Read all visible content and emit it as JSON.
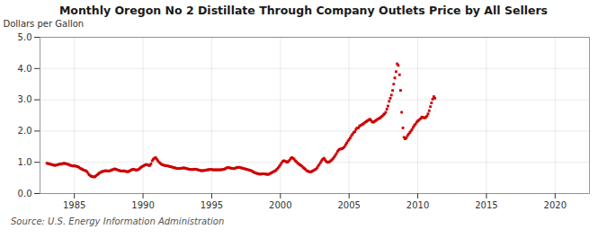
{
  "chart_data": {
    "type": "scatter",
    "title": "Monthly Oregon No 2 Distillate Through Company Outlets Price by All Sellers",
    "ylabel": "Dollars per Gallon",
    "source": "Source: U.S. Energy Information Administration",
    "color": "#cc0000",
    "marker": "square",
    "grid": true,
    "xlim": [
      1982.5,
      2022.5
    ],
    "ylim": [
      0.0,
      5.0
    ],
    "xticks": [
      1985,
      1990,
      1995,
      2000,
      2005,
      2010,
      2015,
      2020
    ],
    "yticks": [
      {
        "value": 0,
        "label": "0.0"
      },
      {
        "value": 1,
        "label": "1.0"
      },
      {
        "value": 2,
        "label": "2.0"
      },
      {
        "value": 3,
        "label": "3.0"
      },
      {
        "value": 4,
        "label": "4.0"
      },
      {
        "value": 5,
        "label": "5.0"
      }
    ],
    "x": [
      1983.0,
      1983.08,
      1983.17,
      1983.25,
      1983.33,
      1983.42,
      1983.5,
      1983.58,
      1983.67,
      1983.75,
      1983.83,
      1983.92,
      1984.0,
      1984.08,
      1984.17,
      1984.25,
      1984.33,
      1984.42,
      1984.5,
      1984.58,
      1984.67,
      1984.75,
      1984.83,
      1984.92,
      1985.0,
      1985.08,
      1985.17,
      1985.25,
      1985.33,
      1985.42,
      1985.5,
      1985.58,
      1985.67,
      1985.75,
      1985.83,
      1985.92,
      1986.0,
      1986.08,
      1986.17,
      1986.25,
      1986.33,
      1986.42,
      1986.5,
      1986.58,
      1986.67,
      1986.75,
      1986.83,
      1986.92,
      1987.0,
      1987.08,
      1987.17,
      1987.25,
      1987.33,
      1987.42,
      1987.5,
      1987.58,
      1987.67,
      1987.75,
      1987.83,
      1987.92,
      1988.0,
      1988.08,
      1988.17,
      1988.25,
      1988.33,
      1988.42,
      1988.5,
      1988.58,
      1988.67,
      1988.75,
      1988.83,
      1988.92,
      1989.0,
      1989.08,
      1989.17,
      1989.25,
      1989.33,
      1989.42,
      1989.5,
      1989.58,
      1989.67,
      1989.75,
      1989.83,
      1989.92,
      1990.0,
      1990.08,
      1990.17,
      1990.25,
      1990.33,
      1990.42,
      1990.5,
      1990.58,
      1990.67,
      1990.75,
      1990.83,
      1990.92,
      1991.0,
      1991.08,
      1991.17,
      1991.25,
      1991.33,
      1991.42,
      1991.5,
      1991.58,
      1991.67,
      1991.75,
      1991.83,
      1991.92,
      1992.0,
      1992.08,
      1992.17,
      1992.25,
      1992.33,
      1992.42,
      1992.5,
      1992.58,
      1992.67,
      1992.75,
      1992.83,
      1992.92,
      1993.0,
      1993.08,
      1993.17,
      1993.25,
      1993.33,
      1993.42,
      1993.5,
      1993.58,
      1993.67,
      1993.75,
      1993.83,
      1993.92,
      1994.0,
      1994.08,
      1994.17,
      1994.25,
      1994.33,
      1994.42,
      1994.5,
      1994.58,
      1994.67,
      1994.75,
      1994.83,
      1994.92,
      1995.0,
      1995.08,
      1995.17,
      1995.25,
      1995.33,
      1995.42,
      1995.5,
      1995.58,
      1995.67,
      1995.75,
      1995.83,
      1995.92,
      1996.0,
      1996.08,
      1996.17,
      1996.25,
      1996.33,
      1996.42,
      1996.5,
      1996.58,
      1996.67,
      1996.75,
      1996.83,
      1996.92,
      1997.0,
      1997.08,
      1997.17,
      1997.25,
      1997.33,
      1997.42,
      1997.5,
      1997.58,
      1997.67,
      1997.75,
      1997.83,
      1997.92,
      1998.0,
      1998.08,
      1998.17,
      1998.25,
      1998.33,
      1998.42,
      1998.5,
      1998.58,
      1998.67,
      1998.75,
      1998.83,
      1998.92,
      1999.0,
      1999.08,
      1999.17,
      1999.25,
      1999.33,
      1999.42,
      1999.5,
      1999.58,
      1999.67,
      1999.75,
      1999.83,
      1999.92,
      2000.0,
      2000.08,
      2000.17,
      2000.25,
      2000.33,
      2000.42,
      2000.5,
      2000.58,
      2000.67,
      2000.75,
      2000.83,
      2000.92,
      2001.0,
      2001.08,
      2001.17,
      2001.25,
      2001.33,
      2001.42,
      2001.5,
      2001.58,
      2001.67,
      2001.75,
      2001.83,
      2001.92,
      2002.0,
      2002.08,
      2002.17,
      2002.25,
      2002.33,
      2002.42,
      2002.5,
      2002.58,
      2002.67,
      2002.75,
      2002.83,
      2002.92,
      2003.0,
      2003.08,
      2003.17,
      2003.25,
      2003.33,
      2003.42,
      2003.5,
      2003.58,
      2003.67,
      2003.75,
      2003.83,
      2003.92,
      2004.0,
      2004.08,
      2004.17,
      2004.25,
      2004.33,
      2004.42,
      2004.5,
      2004.58,
      2004.67,
      2004.75,
      2004.83,
      2004.92,
      2005.0,
      2005.08,
      2005.17,
      2005.25,
      2005.33,
      2005.42,
      2005.5,
      2005.58,
      2005.67,
      2005.75,
      2005.83,
      2005.92,
      2006.0,
      2006.08,
      2006.17,
      2006.25,
      2006.33,
      2006.42,
      2006.5,
      2006.58,
      2006.67,
      2006.75,
      2006.83,
      2006.92,
      2007.0,
      2007.08,
      2007.17,
      2007.25,
      2007.33,
      2007.42,
      2007.5,
      2007.58,
      2007.67,
      2007.75,
      2007.83,
      2007.92,
      2008.0,
      2008.08,
      2008.17,
      2008.25,
      2008.33,
      2008.42,
      2008.5,
      2008.58,
      2008.67,
      2008.75,
      2008.83,
      2008.92,
      2009.0,
      2009.08,
      2009.17,
      2009.25,
      2009.33,
      2009.42,
      2009.5,
      2009.58,
      2009.67,
      2009.75,
      2009.83,
      2009.92,
      2010.0,
      2010.08,
      2010.17,
      2010.25,
      2010.33,
      2010.42,
      2010.5,
      2010.58,
      2010.67,
      2010.75,
      2010.83,
      2010.92,
      2011.0,
      2011.08,
      2011.17,
      2011.25
    ],
    "values": [
      0.97,
      0.96,
      0.95,
      0.94,
      0.93,
      0.92,
      0.91,
      0.9,
      0.91,
      0.92,
      0.93,
      0.94,
      0.95,
      0.94,
      0.96,
      0.97,
      0.96,
      0.95,
      0.94,
      0.93,
      0.91,
      0.9,
      0.89,
      0.88,
      0.89,
      0.88,
      0.87,
      0.86,
      0.84,
      0.81,
      0.79,
      0.78,
      0.75,
      0.74,
      0.73,
      0.7,
      0.65,
      0.6,
      0.57,
      0.55,
      0.54,
      0.53,
      0.54,
      0.57,
      0.6,
      0.63,
      0.66,
      0.68,
      0.7,
      0.71,
      0.72,
      0.73,
      0.73,
      0.72,
      0.72,
      0.73,
      0.74,
      0.76,
      0.77,
      0.79,
      0.78,
      0.77,
      0.75,
      0.74,
      0.73,
      0.72,
      0.72,
      0.73,
      0.72,
      0.71,
      0.7,
      0.7,
      0.72,
      0.74,
      0.76,
      0.77,
      0.78,
      0.76,
      0.75,
      0.76,
      0.77,
      0.8,
      0.83,
      0.86,
      0.88,
      0.9,
      0.92,
      0.93,
      0.92,
      0.9,
      0.9,
      0.95,
      1.05,
      1.1,
      1.13,
      1.15,
      1.1,
      1.05,
      1.0,
      0.97,
      0.94,
      0.92,
      0.91,
      0.9,
      0.89,
      0.89,
      0.88,
      0.87,
      0.86,
      0.85,
      0.84,
      0.83,
      0.82,
      0.81,
      0.8,
      0.8,
      0.8,
      0.81,
      0.81,
      0.82,
      0.82,
      0.81,
      0.8,
      0.79,
      0.78,
      0.77,
      0.77,
      0.77,
      0.77,
      0.78,
      0.78,
      0.77,
      0.76,
      0.75,
      0.74,
      0.73,
      0.73,
      0.74,
      0.74,
      0.75,
      0.76,
      0.76,
      0.77,
      0.77,
      0.77,
      0.76,
      0.76,
      0.76,
      0.76,
      0.76,
      0.76,
      0.76,
      0.76,
      0.77,
      0.77,
      0.78,
      0.8,
      0.82,
      0.83,
      0.83,
      0.82,
      0.81,
      0.8,
      0.8,
      0.8,
      0.82,
      0.83,
      0.84,
      0.84,
      0.83,
      0.82,
      0.81,
      0.8,
      0.79,
      0.78,
      0.77,
      0.76,
      0.75,
      0.74,
      0.72,
      0.7,
      0.68,
      0.66,
      0.65,
      0.64,
      0.63,
      0.62,
      0.62,
      0.63,
      0.63,
      0.63,
      0.62,
      0.62,
      0.61,
      0.62,
      0.64,
      0.66,
      0.68,
      0.7,
      0.72,
      0.74,
      0.78,
      0.82,
      0.87,
      0.92,
      0.98,
      1.03,
      1.05,
      1.04,
      1.02,
      1.0,
      1.03,
      1.07,
      1.12,
      1.15,
      1.13,
      1.1,
      1.05,
      1.02,
      0.98,
      0.95,
      0.92,
      0.9,
      0.87,
      0.83,
      0.8,
      0.77,
      0.73,
      0.72,
      0.7,
      0.69,
      0.7,
      0.72,
      0.74,
      0.76,
      0.78,
      0.82,
      0.88,
      0.93,
      0.99,
      1.05,
      1.1,
      1.13,
      1.08,
      1.03,
      1.0,
      1.0,
      1.02,
      1.05,
      1.08,
      1.12,
      1.17,
      1.22,
      1.28,
      1.35,
      1.4,
      1.42,
      1.43,
      1.44,
      1.46,
      1.5,
      1.56,
      1.62,
      1.68,
      1.73,
      1.78,
      1.85,
      1.9,
      1.95,
      1.98,
      2.05,
      2.1,
      2.1,
      2.15,
      2.18,
      2.2,
      2.22,
      2.25,
      2.28,
      2.3,
      2.33,
      2.35,
      2.38,
      2.35,
      2.3,
      2.28,
      2.3,
      2.33,
      2.35,
      2.38,
      2.4,
      2.42,
      2.45,
      2.48,
      2.52,
      2.55,
      2.6,
      2.7,
      2.8,
      2.95,
      3.05,
      3.15,
      3.3,
      3.5,
      3.7,
      3.9,
      4.15,
      4.1,
      3.8,
      3.3,
      2.6,
      2.1,
      1.8,
      1.75,
      1.78,
      1.85,
      1.9,
      1.95,
      2.0,
      2.05,
      2.12,
      2.18,
      2.22,
      2.28,
      2.32,
      2.35,
      2.38,
      2.42,
      2.45,
      2.43,
      2.42,
      2.44,
      2.48,
      2.55,
      2.65,
      2.78,
      2.9,
      3.02,
      3.1,
      3.05
    ]
  }
}
